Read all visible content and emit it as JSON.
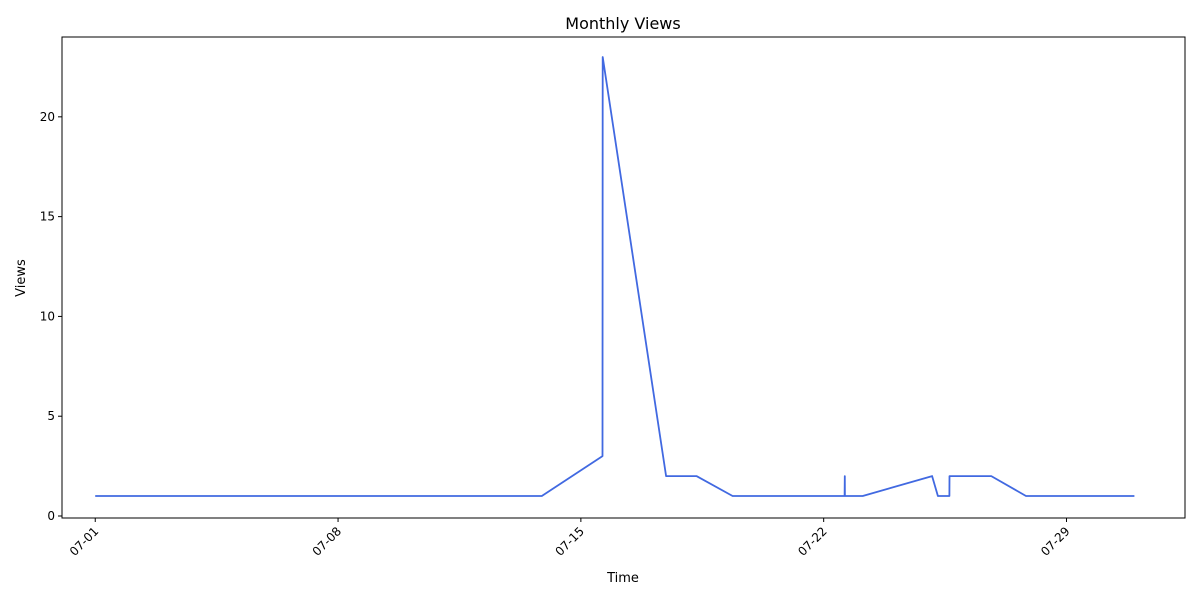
{
  "chart_data": {
    "type": "line",
    "title": "Monthly Views",
    "xlabel": "Time",
    "ylabel": "Views",
    "x_tick_labels": [
      "07-01",
      "07-08",
      "07-15",
      "07-22",
      "07-29"
    ],
    "y_tick_labels": [
      "0",
      "5",
      "10",
      "15",
      "20"
    ],
    "ylim": [
      -0.1,
      24
    ],
    "xlim": [
      "2024-06-30T01:00",
      "2024-08-01T10:00"
    ],
    "grid": false,
    "colors": {
      "line": "#4169e1"
    },
    "series": [
      {
        "x": [
          "2024-07-01T00:00",
          "2024-07-13T21:00",
          "2024-07-15T15:00",
          "2024-07-15T15:05",
          "2024-07-17T11:00",
          "2024-07-18T08:00",
          "2024-07-19T09:00",
          "2024-07-22T14:30",
          "2024-07-22T14:35",
          "2024-07-22T14:40",
          "2024-07-23T03:00",
          "2024-07-25T03:00",
          "2024-07-25T07:00",
          "2024-07-25T15:00",
          "2024-07-25T15:05",
          "2024-07-26T20:00",
          "2024-07-27T20:00",
          "2024-07-30T23:00"
        ],
        "y": [
          1,
          1,
          3,
          23,
          2,
          2,
          1,
          1,
          2,
          1,
          1,
          2,
          1,
          1,
          2,
          2,
          1,
          1
        ]
      }
    ]
  }
}
